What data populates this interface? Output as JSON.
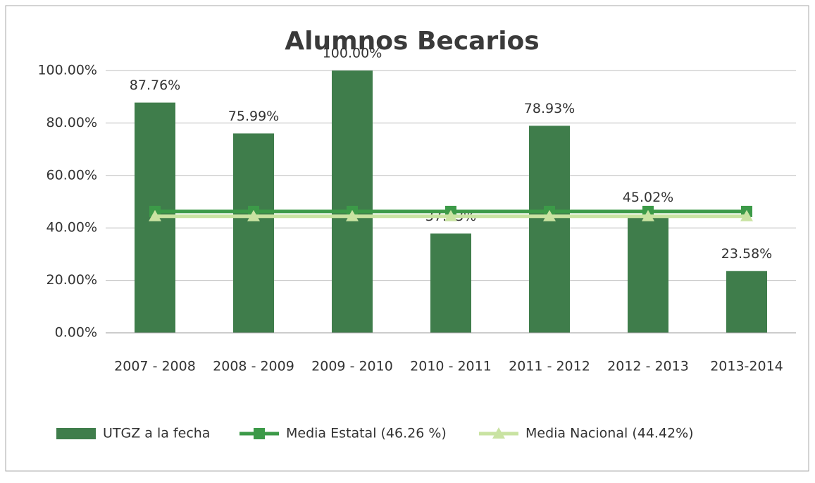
{
  "chart_data": {
    "type": "bar",
    "title": "Alumnos Becarios",
    "categories": [
      "2007  - 2008",
      "2008  - 2009",
      "2009 - 2010",
      "2010 - 2011",
      "2011 - 2012",
      "2012 - 2013",
      "2013-2014"
    ],
    "series": [
      {
        "name": "UTGZ a la fecha",
        "type": "bar",
        "color": "#3f7d4b",
        "values": [
          87.76,
          75.99,
          100,
          37.83,
          78.93,
          45.02,
          23.58
        ],
        "value_labels": [
          "87.76%",
          "75.99%",
          "100.00%",
          "37.83%",
          "78.93%",
          "45.02%",
          "23.58%"
        ]
      },
      {
        "name": "Media Estatal (46.26 %)",
        "type": "line",
        "marker": "square",
        "color": "#3c9a48",
        "values": [
          46.26,
          46.26,
          46.26,
          46.26,
          46.26,
          46.26,
          46.26
        ]
      },
      {
        "name": "Media Nacional (44.42%)",
        "type": "line",
        "marker": "triangle",
        "color": "#c9e3a2",
        "values": [
          44.42,
          44.42,
          44.42,
          44.42,
          44.42,
          44.42,
          44.42
        ]
      }
    ],
    "ylim": [
      0,
      100
    ],
    "yticks": [
      {
        "value": 0,
        "label": "0.00%"
      },
      {
        "value": 20,
        "label": "20.00%"
      },
      {
        "value": 40,
        "label": "40.00%"
      },
      {
        "value": 60,
        "label": "60.00%"
      },
      {
        "value": 80,
        "label": "80.00%"
      },
      {
        "value": 100,
        "label": "100.00%"
      }
    ],
    "grid": true,
    "legend": "bottom"
  }
}
